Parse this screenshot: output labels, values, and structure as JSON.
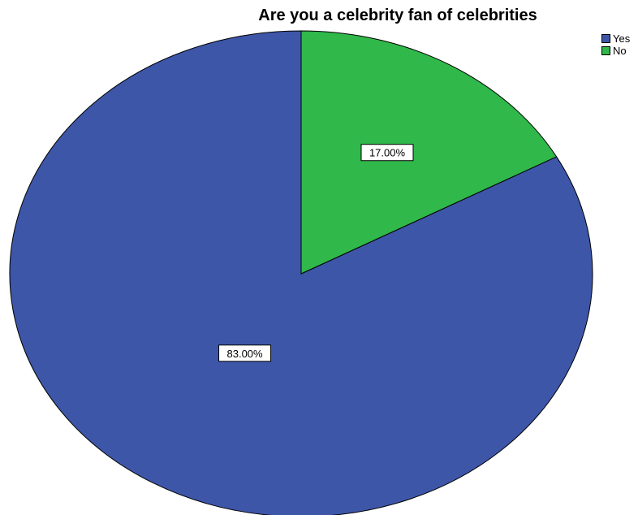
{
  "chart_data": {
    "type": "pie",
    "title": "Are you a celebrity fan of celebrities",
    "categories": [
      "Yes",
      "No"
    ],
    "values": [
      83.0,
      17.0
    ],
    "data_labels": [
      "83.00%",
      "17.00%"
    ],
    "colors": [
      "#3d56a8",
      "#30b84a"
    ],
    "legend": {
      "placement": "top-right",
      "entries": [
        "Yes",
        "No"
      ]
    }
  }
}
